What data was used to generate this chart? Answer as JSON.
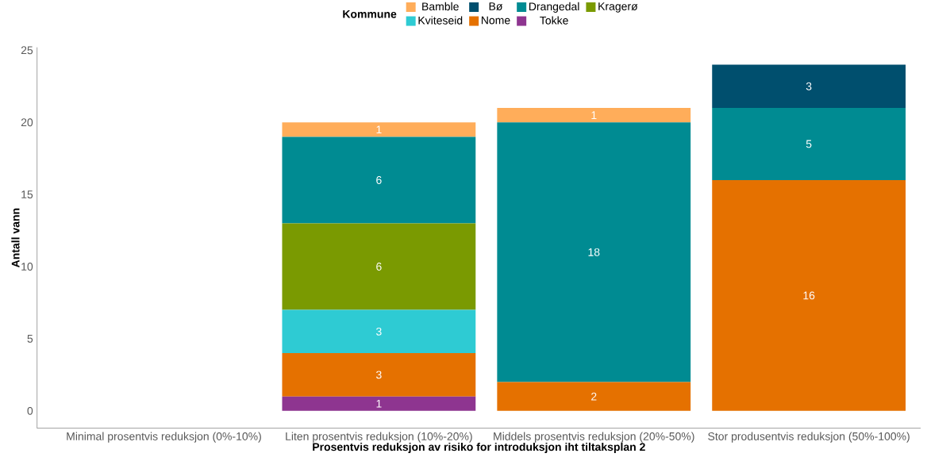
{
  "chart_data": {
    "type": "bar",
    "stacked": true,
    "xlabel": "Prosentvis reduksjon av risiko for introduksjon iht tiltaksplan 2",
    "ylabel": "Antall vann",
    "legend_title": "Kommune",
    "legend": "top",
    "categories": [
      "Minimal prosentvis reduksjon (0%-10%)",
      "Liten prosentvis reduksjon (10%-20%)",
      "Middels prosentvis reduksjon (20%-50%)",
      "Stor produsentvis reduksjon (50%-100%)"
    ],
    "series": [
      {
        "name": "Tokke",
        "color": "#8e3590",
        "values": [
          null,
          1,
          null,
          null
        ]
      },
      {
        "name": "Nome",
        "color": "#e57100",
        "values": [
          null,
          3,
          2,
          16
        ]
      },
      {
        "name": "Kviteseid",
        "color": "#2ecbd3",
        "values": [
          null,
          3,
          null,
          null
        ]
      },
      {
        "name": "Kragerø",
        "color": "#7a9a01",
        "values": [
          null,
          6,
          null,
          null
        ]
      },
      {
        "name": "Drangedal",
        "color": "#008b92",
        "values": [
          null,
          6,
          18,
          5
        ]
      },
      {
        "name": "Bø",
        "color": "#004f6e",
        "values": [
          null,
          null,
          null,
          3
        ]
      },
      {
        "name": "Bamble",
        "color": "#ffad5a",
        "values": [
          null,
          1,
          1,
          null
        ]
      }
    ],
    "ylim": [
      -1.2,
      25.2
    ],
    "yticks": [
      0,
      5,
      10,
      15,
      20,
      25
    ],
    "grid": false,
    "data_labels": true
  }
}
